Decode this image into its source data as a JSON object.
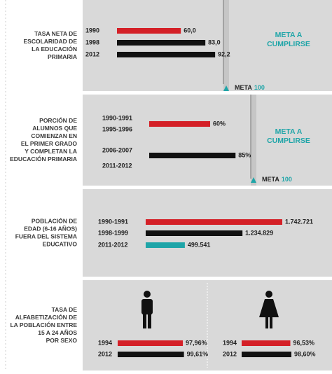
{
  "chart_data": [
    {
      "type": "bar",
      "title": [
        "TASA NETA DE",
        "ESCOLARIDAD DE",
        "LA EDUCACIÓN",
        "PRIMARIA"
      ],
      "categories": [
        "1990",
        "1998",
        "2012"
      ],
      "values": [
        60.0,
        83.0,
        92.2
      ],
      "value_labels": [
        "60,0",
        "83,0",
        "92,2"
      ],
      "colors": [
        "#d42027",
        "#111111",
        "#111111"
      ],
      "target_label": "META",
      "target": 100,
      "target_note": [
        "META A",
        "CUMPLIRSE"
      ]
    },
    {
      "type": "bar",
      "title": [
        "PORCIÓN DE",
        "ALUMNOS QUE",
        "COMIENZAN EN",
        "EL PRIMER GRADO",
        "Y COMPLETAN LA",
        "EDUCACIÓN PRIMARIA"
      ],
      "categories": [
        [
          "1990-1991",
          "1995-1996"
        ],
        [
          "2006-2007",
          "2011-2012"
        ]
      ],
      "values": [
        60,
        85
      ],
      "value_labels": [
        "60%",
        "85%"
      ],
      "colors": [
        "#d42027",
        "#111111"
      ],
      "target_label": "META",
      "target": 100,
      "target_note": [
        "META A",
        "CUMPLIRSE"
      ]
    },
    {
      "type": "bar",
      "title": [
        "POBLACIÓN DE",
        "EDAD (6-16 AÑOS)",
        "FUERA DEL SISTEMA",
        "EDUCATIVO"
      ],
      "categories": [
        "1990-1991",
        "1998-1999",
        "2011-2012"
      ],
      "values": [
        1742721,
        1234829,
        499541
      ],
      "value_labels": [
        "1.742.721",
        "1.234.829",
        "499.541"
      ],
      "colors": [
        "#d42027",
        "#111111",
        "#1fa5a8"
      ]
    },
    {
      "type": "pair",
      "title": [
        "TASA DE",
        "ALFABETIZACIÓN DE",
        "LA POBLACIÓN ENTRE",
        "15 A 24 AÑOS",
        "POR SEXO"
      ],
      "groups": [
        {
          "categories": [
            "1994",
            "2012"
          ],
          "values": [
            97.96,
            99.61
          ],
          "value_labels": [
            "97,96%",
            "99,61%"
          ]
        },
        {
          "categories": [
            "1994",
            "2012"
          ],
          "values": [
            96.53,
            98.6
          ],
          "value_labels": [
            "96,53%",
            "98,60%"
          ]
        }
      ],
      "colors": [
        "#d42027",
        "#111111"
      ]
    }
  ]
}
